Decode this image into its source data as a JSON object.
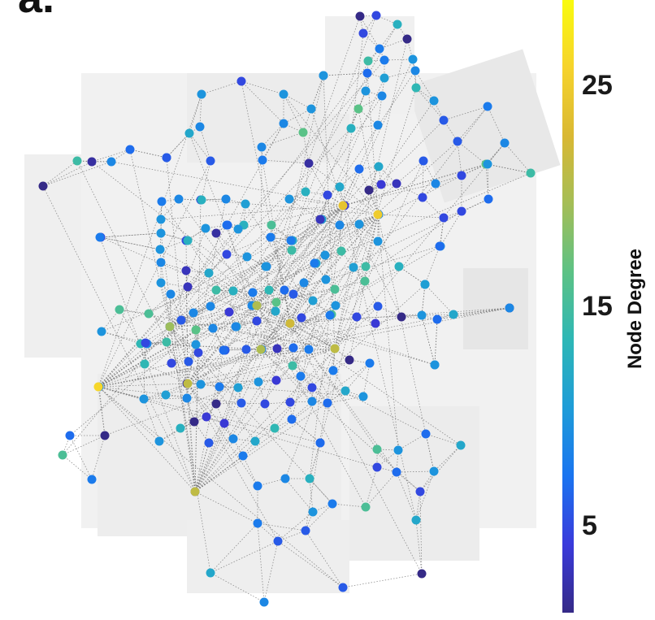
{
  "panel": {
    "label": "a."
  },
  "colorbar": {
    "title": "Node Degree",
    "colors": [
      "#352a87",
      "#3a3adb",
      "#1a74f0",
      "#1e9cd8",
      "#2db7b6",
      "#5cc285",
      "#a4be57",
      "#d9b833",
      "#f6d32c",
      "#f9fb0e"
    ],
    "ticks": [
      "5",
      "15",
      "25"
    ]
  },
  "chart_data": {
    "type": "scatter",
    "title": "",
    "colorbar_label": "Node Degree",
    "colorbar_ticks": [
      5,
      15,
      25
    ],
    "colorbar_range": [
      1,
      30
    ],
    "edge_style": "dotted",
    "background": "floor-plan map",
    "node_count": 260,
    "degree_distribution_note": "most nodes degree 3-12; hub nodes up to ~27"
  }
}
